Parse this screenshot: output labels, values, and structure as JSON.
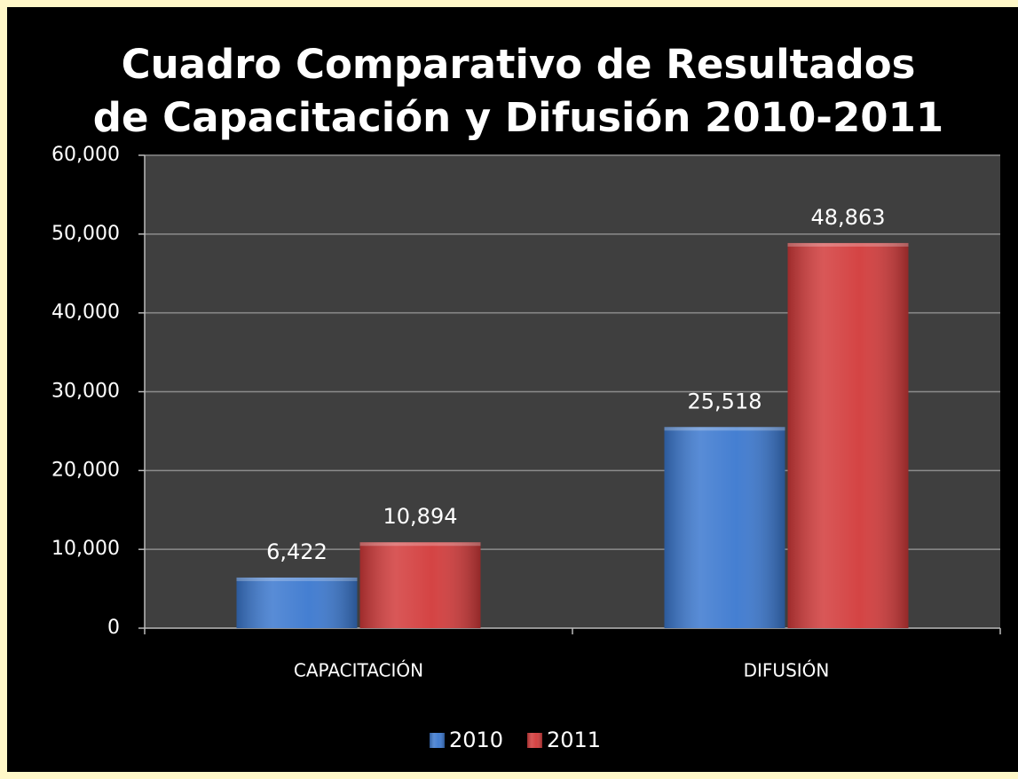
{
  "chart_data": {
    "type": "bar",
    "title": [
      "Cuadro Comparativo de Resultados",
      "de Capacitación y Difusión 2010-2011"
    ],
    "categories": [
      "CAPACITACIÓN",
      "DIFUSIÓN"
    ],
    "series": [
      {
        "name": "2010",
        "color": "#3b78cf",
        "values": [
          6422,
          25518
        ],
        "value_labels": [
          "6,422",
          "25,518"
        ]
      },
      {
        "name": "2011",
        "color": "#d23a3a",
        "values": [
          10894,
          48863
        ],
        "value_labels": [
          "10,894",
          "48,863"
        ]
      }
    ],
    "ylim": [
      0,
      60000
    ],
    "yticks": [
      0,
      {
        "value": 10000,
        "label": "10,000"
      },
      {
        "value": 20000,
        "label": "20,000"
      },
      {
        "value": 30000,
        "label": "30,000"
      },
      {
        "value": 40000,
        "label": "40,000"
      },
      {
        "value": 50000,
        "label": "50,000"
      },
      {
        "value": 60000,
        "label": "60,000"
      }
    ],
    "grid": true,
    "legend": "bottom"
  }
}
